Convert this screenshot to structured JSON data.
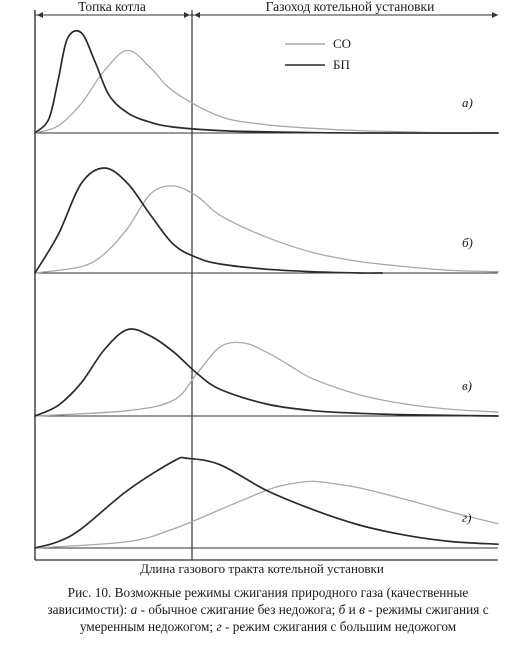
{
  "header": {
    "left": "Топка котла",
    "right": "Газоход котельной установки"
  },
  "legend": [
    {
      "label": "СО",
      "style": "light"
    },
    {
      "label": "БП",
      "style": "dark"
    }
  ],
  "xlabel": "Длина газового тракта котельной установки",
  "caption": {
    "line1": "Рис. 10. Возможные режимы сжигания природного  газа (качественные",
    "line2_pre": "зависимости): ",
    "a": "а",
    "a_text": " - обычное сжигание без недожога; ",
    "b": "б",
    "and": " и ",
    "v": "в",
    "bv_text": " - режимы сжигания с",
    "line3_pre": "умеренным недожогом; ",
    "g": "г",
    "g_text": " - режим сжигания с большим недожогом"
  },
  "colors": {
    "co": "#a8a8a8",
    "bp": "#2a2a2a",
    "axis": "#333333"
  },
  "chart_data": {
    "type": "line",
    "title": "",
    "xlabel": "Длина газового тракта котельной установки",
    "ylabel": "",
    "xlim": [
      0,
      1
    ],
    "boundary_x": 0.33,
    "zones": [
      "Топка котла",
      "Газоход котельной установки"
    ],
    "panels": [
      {
        "label": "а)",
        "series": [
          {
            "name": "СО",
            "x": [
              0,
              0.05,
              0.1,
              0.15,
              0.2,
              0.25,
              0.3,
              0.4,
              0.5,
              0.6,
              0.7,
              0.8,
              0.9,
              1.0
            ],
            "y": [
              0,
              0.06,
              0.25,
              0.53,
              0.7,
              0.55,
              0.35,
              0.14,
              0.07,
              0.04,
              0.02,
              0.01,
              0.0,
              0.0
            ]
          },
          {
            "name": "БП",
            "x": [
              0,
              0.03,
              0.05,
              0.07,
              0.1,
              0.13,
              0.16,
              0.2,
              0.25,
              0.3,
              0.4,
              0.5,
              0.7,
              1.0
            ],
            "y": [
              0,
              0.12,
              0.45,
              0.8,
              0.85,
              0.6,
              0.32,
              0.17,
              0.09,
              0.05,
              0.02,
              0.01,
              0.0,
              0.0
            ]
          }
        ]
      },
      {
        "label": "б)",
        "series": [
          {
            "name": "СО",
            "x": [
              0,
              0.1,
              0.15,
              0.2,
              0.25,
              0.3,
              0.35,
              0.4,
              0.5,
              0.6,
              0.7,
              0.8,
              0.9,
              1.0
            ],
            "y": [
              0,
              0.05,
              0.15,
              0.35,
              0.62,
              0.68,
              0.6,
              0.45,
              0.28,
              0.16,
              0.09,
              0.05,
              0.02,
              0.01
            ]
          },
          {
            "name": "БП",
            "x": [
              0,
              0.05,
              0.1,
              0.15,
              0.2,
              0.25,
              0.3,
              0.35,
              0.4,
              0.5,
              0.6,
              0.7,
              0.75
            ],
            "y": [
              0,
              0.3,
              0.7,
              0.82,
              0.7,
              0.45,
              0.22,
              0.12,
              0.07,
              0.03,
              0.01,
              0.0,
              0.0
            ]
          }
        ]
      },
      {
        "label": "в)",
        "series": [
          {
            "name": "СО",
            "x": [
              0,
              0.2,
              0.3,
              0.35,
              0.4,
              0.45,
              0.5,
              0.55,
              0.6,
              0.7,
              0.8,
              0.9,
              1.0
            ],
            "y": [
              0,
              0.04,
              0.12,
              0.32,
              0.52,
              0.55,
              0.48,
              0.38,
              0.28,
              0.16,
              0.09,
              0.05,
              0.03
            ]
          },
          {
            "name": "БП",
            "x": [
              0,
              0.05,
              0.1,
              0.15,
              0.2,
              0.25,
              0.3,
              0.35,
              0.4,
              0.5,
              0.6,
              0.7,
              0.8,
              1.0
            ],
            "y": [
              0,
              0.08,
              0.25,
              0.5,
              0.65,
              0.6,
              0.48,
              0.32,
              0.2,
              0.09,
              0.04,
              0.02,
              0.01,
              0.0
            ]
          }
        ]
      },
      {
        "label": "г)",
        "series": [
          {
            "name": "СО",
            "x": [
              0,
              0.2,
              0.3,
              0.4,
              0.5,
              0.55,
              0.6,
              0.65,
              0.7,
              0.8,
              0.9,
              1.0
            ],
            "y": [
              0,
              0.05,
              0.15,
              0.3,
              0.45,
              0.5,
              0.52,
              0.5,
              0.47,
              0.38,
              0.28,
              0.19
            ]
          },
          {
            "name": "БП",
            "x": [
              0,
              0.05,
              0.1,
              0.2,
              0.3,
              0.33,
              0.4,
              0.5,
              0.6,
              0.7,
              0.8,
              0.9,
              1.0
            ],
            "y": [
              0,
              0.05,
              0.15,
              0.45,
              0.68,
              0.7,
              0.65,
              0.45,
              0.3,
              0.18,
              0.1,
              0.05,
              0.03
            ]
          }
        ]
      }
    ]
  }
}
